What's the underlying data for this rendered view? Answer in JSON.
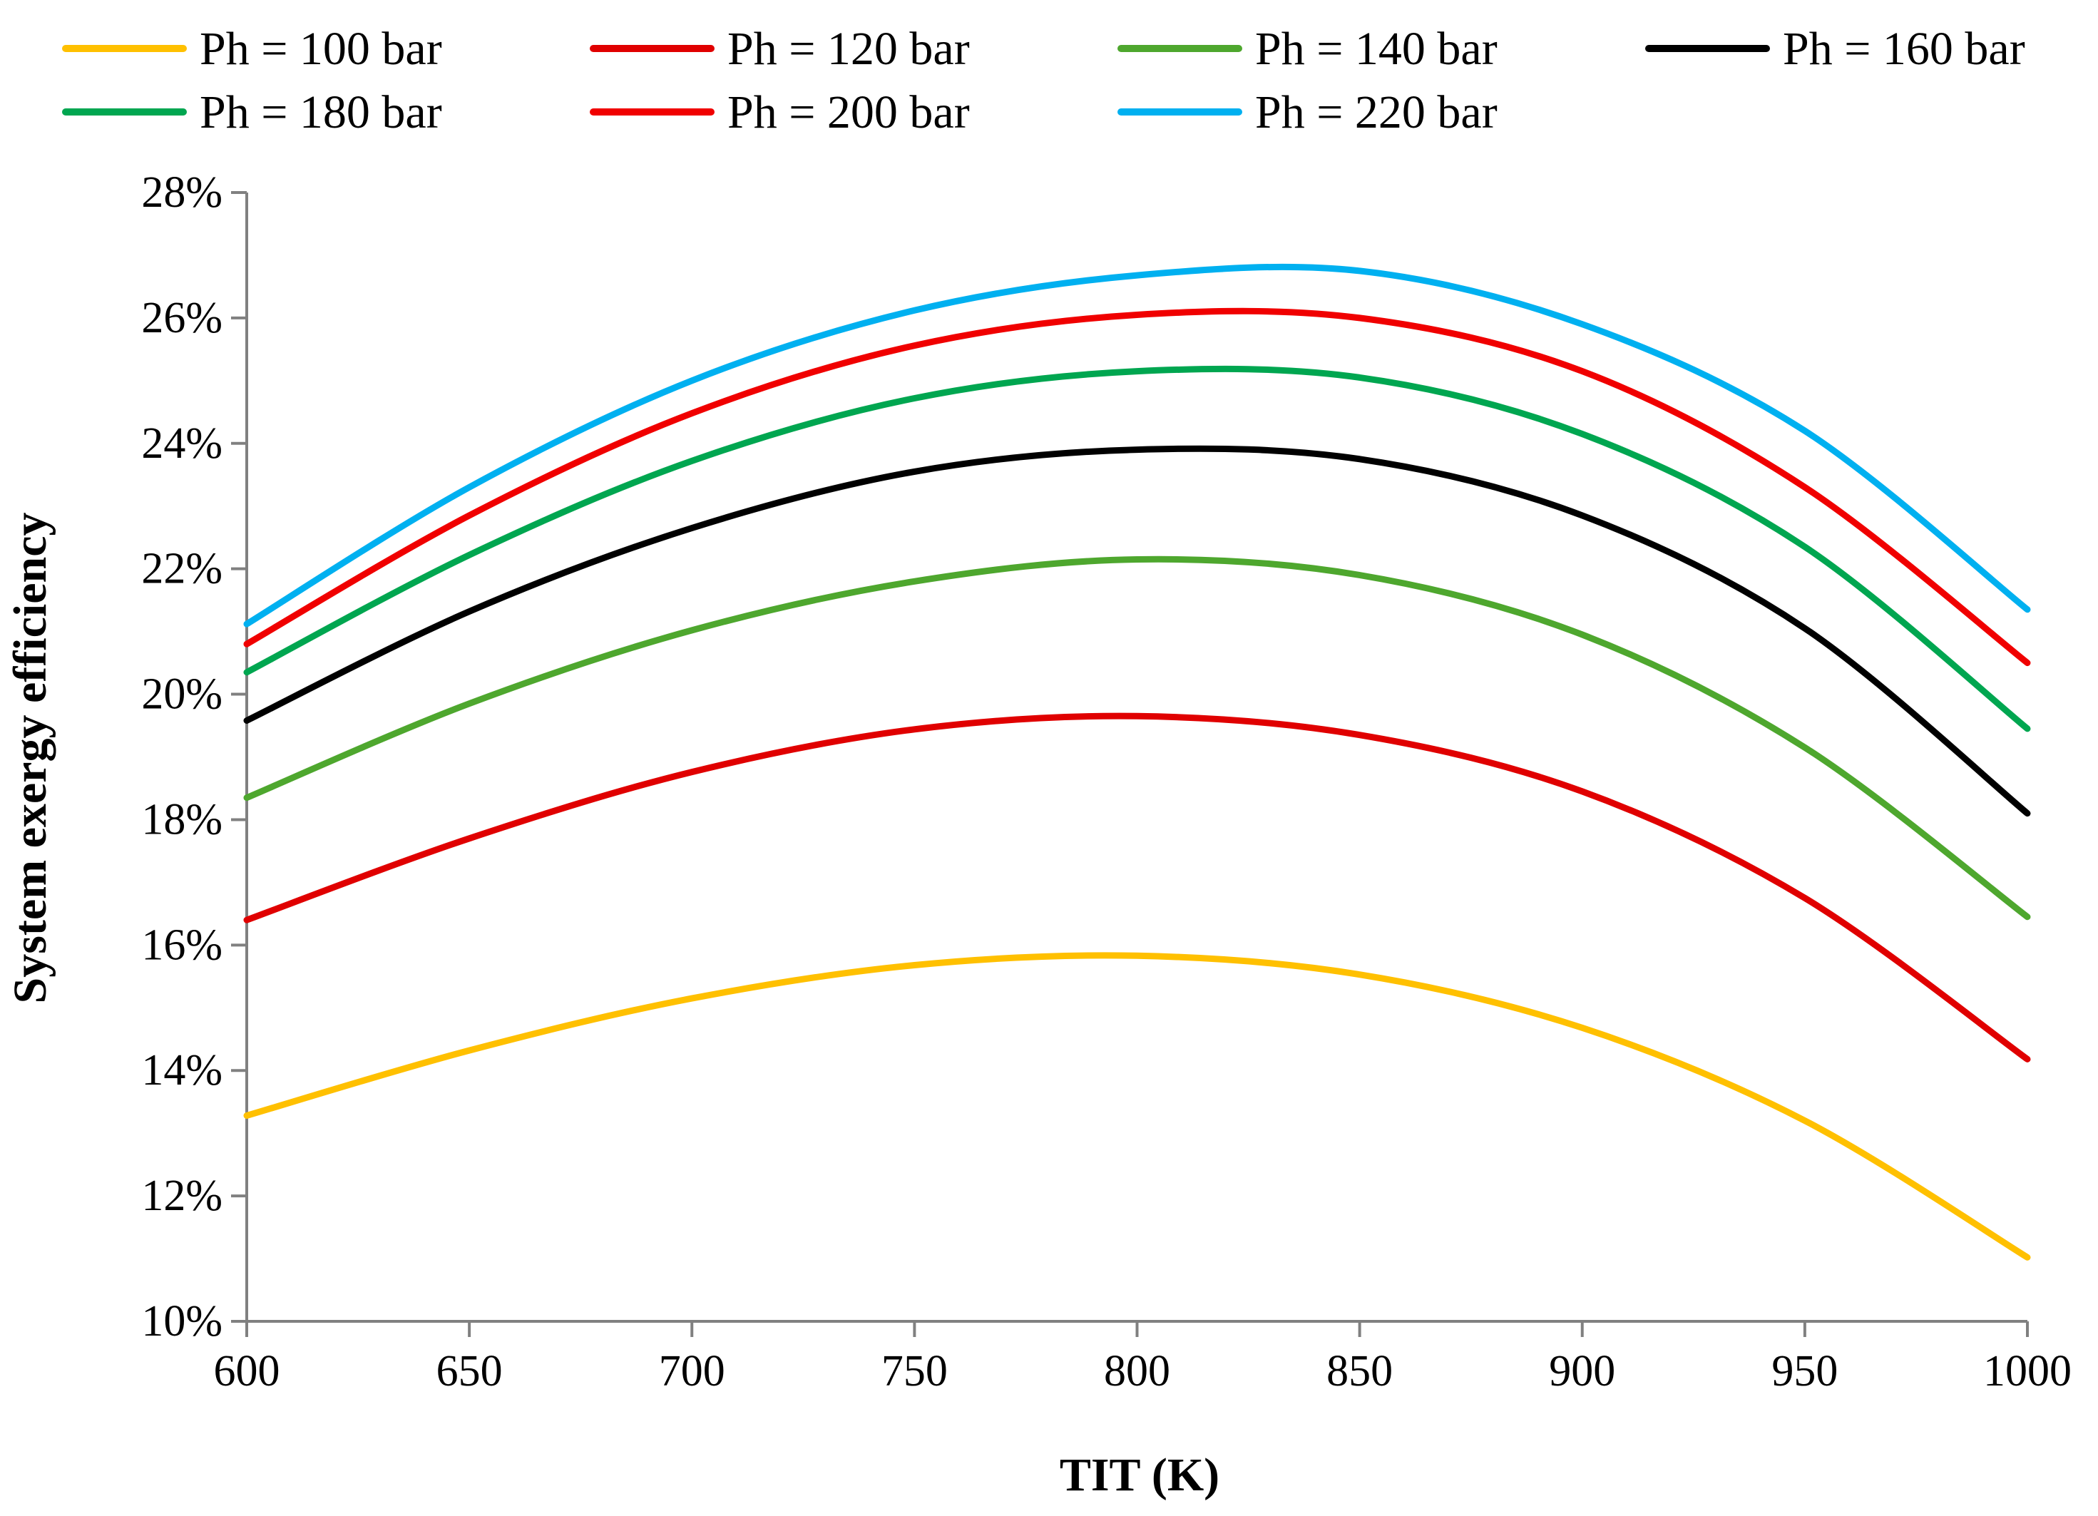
{
  "chart_data": {
    "type": "line",
    "title": "",
    "xlabel": "TIT (K)",
    "ylabel": "System exergy efficiency",
    "xlim": [
      600,
      1000
    ],
    "ylim": [
      0.1,
      0.28
    ],
    "x_ticks": [
      600,
      650,
      700,
      750,
      800,
      850,
      900,
      950,
      1000
    ],
    "x_tick_labels": [
      "600",
      "650",
      "700",
      "750",
      "800",
      "850",
      "900",
      "950",
      "1000"
    ],
    "y_ticks": [
      0.1,
      0.12,
      0.14,
      0.16,
      0.18,
      0.2,
      0.22,
      0.24,
      0.26,
      0.28
    ],
    "y_tick_labels": [
      "10%",
      "12%",
      "14%",
      "16%",
      "18%",
      "20%",
      "22%",
      "24%",
      "26%",
      "28%"
    ],
    "grid": false,
    "legend_position": "top",
    "x": [
      600,
      650,
      700,
      750,
      800,
      850,
      900,
      950,
      1000
    ],
    "series": [
      {
        "name": "Ph = 100 bar",
        "color": "#FFC000",
        "values": [
          0.1328,
          0.1432,
          0.1515,
          0.1568,
          0.1583,
          0.1553,
          0.1468,
          0.132,
          0.1102
        ]
      },
      {
        "name": "Ph = 120 bar",
        "color": "#E00000",
        "values": [
          0.164,
          0.177,
          0.1876,
          0.1944,
          0.1965,
          0.1935,
          0.1845,
          0.1675,
          0.1418
        ]
      },
      {
        "name": "Ph = 140 bar",
        "color": "#4EA72E",
        "values": [
          0.1835,
          0.1985,
          0.2102,
          0.218,
          0.2215,
          0.219,
          0.2095,
          0.1915,
          0.1645
        ]
      },
      {
        "name": "Ph = 160 bar",
        "color": "#000000",
        "values": [
          0.1958,
          0.2132,
          0.2265,
          0.2355,
          0.239,
          0.2375,
          0.2285,
          0.2105,
          0.181
        ]
      },
      {
        "name": "Ph = 180 bar",
        "color": "#00A650",
        "values": [
          0.2035,
          0.2222,
          0.2372,
          0.2472,
          0.2515,
          0.2505,
          0.2415,
          0.2235,
          0.1945
        ]
      },
      {
        "name": "Ph = 200 bar",
        "color": "#F00000",
        "values": [
          0.208,
          0.2285,
          0.2448,
          0.2556,
          0.2605,
          0.26,
          0.2515,
          0.233,
          0.205
        ]
      },
      {
        "name": "Ph = 220 bar",
        "color": "#00B0F0",
        "values": [
          0.2112,
          0.233,
          0.25,
          0.2612,
          0.2668,
          0.2675,
          0.259,
          0.242,
          0.2135
        ]
      }
    ]
  }
}
